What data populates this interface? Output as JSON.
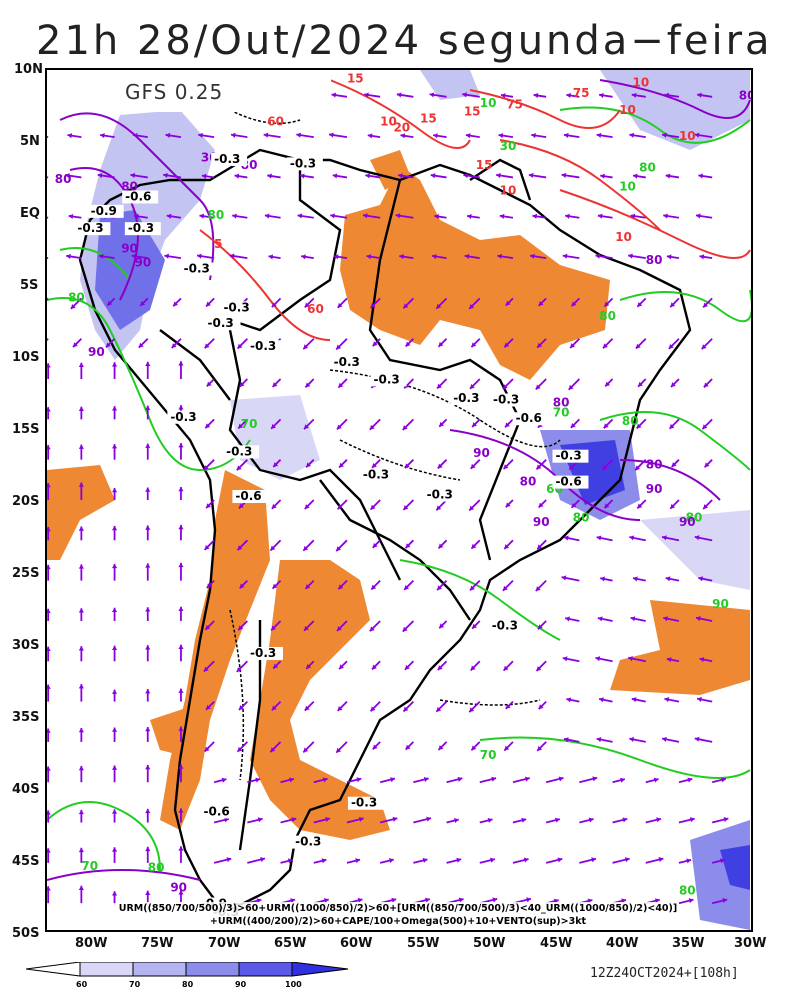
{
  "title": "21h 28/Out/2024 segunda−feira",
  "model_label": "GFS 0.25",
  "lat_labels": [
    "10N",
    "5N",
    "EQ",
    "5S",
    "10S",
    "15S",
    "20S",
    "25S",
    "30S",
    "35S",
    "40S",
    "45S",
    "50S"
  ],
  "lon_labels": [
    "80W",
    "75W",
    "70W",
    "65W",
    "60W",
    "55W",
    "50W",
    "45W",
    "40W",
    "35W",
    "30W"
  ],
  "formula_line1": "URM((850/700/500)/3)>60+URM((1000/850)/2)>60+[URM((850/700/500)/3)<40_URM((1000/850)/2)<40)]",
  "formula_line2": "+URM((400/200)/2)>60+CAPE/100+Omega(500)+10+VENTO(sup)>3kt",
  "colorbar": {
    "ticks": [
      "60",
      "70",
      "80",
      "90",
      "100"
    ],
    "colors": [
      "#ffffff",
      "#d8d8f6",
      "#b4b4f0",
      "#8c8cea",
      "#5a5ae6",
      "#3030e0"
    ]
  },
  "run_stamp": "12Z24OCT2024+[108h]",
  "colors": {
    "cape_fill": "#ee8833",
    "humidity_contour": "#8a00c8",
    "rh_green": "#22cc22",
    "cape_red": "#ee3333",
    "omega_black": "#000000",
    "wind_arrows": "#8a00e0"
  },
  "map_labels": {
    "omega": [
      {
        "text": "-0.3",
        "lon": -70.5,
        "lat": 3.4
      },
      {
        "text": "-0.3",
        "lon": -64.8,
        "lat": 3.1
      },
      {
        "text": "-0.6",
        "lon": -77.2,
        "lat": 0.8
      },
      {
        "text": "-0.9",
        "lon": -79.8,
        "lat": -0.2
      },
      {
        "text": "-0.3",
        "lon": -80.8,
        "lat": -1.4
      },
      {
        "text": "-0.3",
        "lon": -77.0,
        "lat": -1.4
      },
      {
        "text": "-0.3",
        "lon": -72.8,
        "lat": -4.2
      },
      {
        "text": "-0.3",
        "lon": -69.8,
        "lat": -6.9
      },
      {
        "text": "-0.3",
        "lon": -71.0,
        "lat": -8.0
      },
      {
        "text": "-0.3",
        "lon": -67.8,
        "lat": -9.6
      },
      {
        "text": "-0.3",
        "lon": -61.5,
        "lat": -10.7
      },
      {
        "text": "-0.3",
        "lon": -58.5,
        "lat": -11.9
      },
      {
        "text": "-0.3",
        "lon": -52.5,
        "lat": -13.2
      },
      {
        "text": "-0.3",
        "lon": -49.5,
        "lat": -13.3
      },
      {
        "text": "-0.6",
        "lon": -47.8,
        "lat": -14.6
      },
      {
        "text": "-0.3",
        "lon": -73.8,
        "lat": -14.5
      },
      {
        "text": "-0.3",
        "lon": -69.6,
        "lat": -16.9
      },
      {
        "text": "-0.3",
        "lon": -44.8,
        "lat": -17.2
      },
      {
        "text": "-0.3",
        "lon": -59.3,
        "lat": -18.5
      },
      {
        "text": "-0.6",
        "lon": -44.8,
        "lat": -19.0
      },
      {
        "text": "-0.3",
        "lon": -54.5,
        "lat": -19.9
      },
      {
        "text": "-0.6",
        "lon": -68.9,
        "lat": -20.0
      },
      {
        "text": "-0.3",
        "lon": -49.6,
        "lat": -29.0
      },
      {
        "text": "-0.3",
        "lon": -67.8,
        "lat": -30.9
      },
      {
        "text": "-0.3",
        "lon": -60.2,
        "lat": -41.3
      },
      {
        "text": "-0.6",
        "lon": -71.3,
        "lat": -41.9
      },
      {
        "text": "-0.3",
        "lon": -64.4,
        "lat": -44.0
      },
      {
        "text": "-0.9",
        "lon": -71.5,
        "lat": -48.3
      },
      {
        "text": "-0.3",
        "lon": -70.6,
        "lat": -48.9
      }
    ],
    "rh_purple": [
      {
        "text": "80",
        "lon": -82.5,
        "lat": 2.0
      },
      {
        "text": "80",
        "lon": -77.5,
        "lat": 1.5
      },
      {
        "text": "30",
        "lon": -71.5,
        "lat": 3.5
      },
      {
        "text": "80",
        "lon": -68.5,
        "lat": 3.0
      },
      {
        "text": "90",
        "lon": -77.5,
        "lat": -2.8
      },
      {
        "text": "90",
        "lon": -76.5,
        "lat": -3.8
      },
      {
        "text": "90",
        "lon": -80.0,
        "lat": -10.0
      },
      {
        "text": "80",
        "lon": -45.0,
        "lat": -13.5
      },
      {
        "text": "90",
        "lon": -51.0,
        "lat": -17.0
      },
      {
        "text": "80",
        "lon": -47.5,
        "lat": -19.0
      },
      {
        "text": "90",
        "lon": -46.5,
        "lat": -21.8
      },
      {
        "text": "80",
        "lon": -38.0,
        "lat": -17.8
      },
      {
        "text": "90",
        "lon": -38.0,
        "lat": -19.5
      },
      {
        "text": "90",
        "lon": -35.5,
        "lat": -21.8
      },
      {
        "text": "80",
        "lon": -38.0,
        "lat": -3.6
      },
      {
        "text": "80",
        "lon": -31.0,
        "lat": 7.8
      },
      {
        "text": "90",
        "lon": -73.8,
        "lat": -47.2
      }
    ],
    "rh_green": [
      {
        "text": "80",
        "lon": -81.5,
        "lat": -6.2
      },
      {
        "text": "80",
        "lon": -71.0,
        "lat": -0.5
      },
      {
        "text": "70",
        "lon": -68.5,
        "lat": -15.0
      },
      {
        "text": "70",
        "lon": -45.0,
        "lat": -14.2
      },
      {
        "text": "80",
        "lon": -39.8,
        "lat": -14.8
      },
      {
        "text": "60",
        "lon": -45.5,
        "lat": -19.5
      },
      {
        "text": "80",
        "lon": -43.5,
        "lat": -21.5
      },
      {
        "text": "80",
        "lon": -35.0,
        "lat": -21.5
      },
      {
        "text": "80",
        "lon": -41.5,
        "lat": -7.5
      },
      {
        "text": "30",
        "lon": -49.0,
        "lat": 4.3
      },
      {
        "text": "10",
        "lon": -50.5,
        "lat": 7.3
      },
      {
        "text": "80",
        "lon": -38.5,
        "lat": 2.8
      },
      {
        "text": "90",
        "lon": -33.0,
        "lat": -27.5
      },
      {
        "text": "70",
        "lon": -50.5,
        "lat": -38.0
      },
      {
        "text": "70",
        "lon": -80.5,
        "lat": -45.7
      },
      {
        "text": "80",
        "lon": -75.5,
        "lat": -45.8
      },
      {
        "text": "80",
        "lon": -35.5,
        "lat": -47.4
      },
      {
        "text": "10",
        "lon": -40.0,
        "lat": 1.5
      }
    ],
    "cape_red": [
      {
        "text": "15",
        "lon": -60.5,
        "lat": 9.0
      },
      {
        "text": "15",
        "lon": -55.0,
        "lat": 6.2
      },
      {
        "text": "15",
        "lon": -51.7,
        "lat": 6.7
      },
      {
        "text": "20",
        "lon": -57.0,
        "lat": 5.6
      },
      {
        "text": "10",
        "lon": -58.0,
        "lat": 6.0
      },
      {
        "text": "15",
        "lon": -50.8,
        "lat": 3.0
      },
      {
        "text": "10",
        "lon": -49.0,
        "lat": 1.2
      },
      {
        "text": "10",
        "lon": -39.0,
        "lat": 8.7
      },
      {
        "text": "10",
        "lon": -40.0,
        "lat": 6.8
      },
      {
        "text": "10",
        "lon": -35.5,
        "lat": 5.0
      },
      {
        "text": "10",
        "lon": -40.3,
        "lat": -2.0
      },
      {
        "text": "75",
        "lon": -43.5,
        "lat": 8.0
      },
      {
        "text": "75",
        "lon": -48.5,
        "lat": 7.2
      },
      {
        "text": "5",
        "lon": -70.5,
        "lat": -2.5
      },
      {
        "text": "60",
        "lon": -66.5,
        "lat": 6.0
      },
      {
        "text": "60",
        "lon": -63.5,
        "lat": -7.0
      }
    ]
  }
}
